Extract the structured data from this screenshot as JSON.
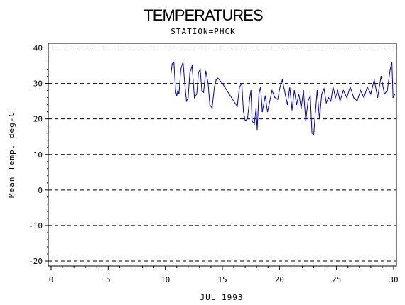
{
  "chart_data": {
    "type": "line",
    "title": "TEMPERATURES",
    "subtitle": "STATION=PHCK",
    "xlabel": "JUL 1993",
    "ylabel": "Mean Temp. deg-C",
    "xlim": [
      0,
      30
    ],
    "ylim": [
      -20,
      40
    ],
    "x_ticks": [
      0,
      5,
      10,
      15,
      20,
      25,
      30
    ],
    "y_ticks": [
      -20,
      -10,
      0,
      10,
      20,
      30,
      40
    ],
    "grid": "horizontal dashed",
    "colors": {
      "series": "#0000cc",
      "axes": "#000000"
    },
    "series": [
      {
        "x": [
          10.5,
          10.6,
          10.75,
          10.9,
          11.0,
          11.1,
          11.2,
          11.35,
          11.55,
          11.7,
          11.85,
          12.0,
          12.15,
          12.35,
          12.55,
          12.75,
          12.9,
          13.05,
          13.2,
          13.35,
          13.55,
          13.75,
          13.9,
          14.1,
          14.3,
          14.45,
          14.6,
          15.0,
          15.6,
          16.3,
          16.5,
          16.7,
          16.85,
          17.0,
          17.2,
          17.4,
          17.5,
          17.6,
          17.8,
          17.95,
          18.05,
          18.2,
          18.35,
          18.5,
          18.75,
          18.95,
          19.15,
          19.35,
          19.6,
          19.85,
          20.05,
          20.25,
          20.5,
          20.7,
          20.9,
          21.1,
          21.3,
          21.5,
          21.7,
          21.9,
          22.1,
          22.3,
          22.5,
          22.7,
          22.85,
          23.0,
          23.15,
          23.3,
          23.5,
          23.7,
          23.9,
          24.1,
          24.3,
          24.5,
          24.7,
          24.9,
          25.1,
          25.3,
          25.6,
          25.9,
          26.2,
          26.5,
          26.8,
          27.1,
          27.4,
          27.7,
          28.0,
          28.3,
          28.6,
          28.9,
          29.2,
          29.45,
          29.7,
          29.85,
          29.95,
          30.1
        ],
        "y": [
          33,
          35.5,
          36,
          28,
          26.5,
          28,
          27,
          34,
          36,
          30,
          25,
          26,
          33,
          35,
          26,
          27,
          33,
          34,
          28,
          27.5,
          33.5,
          30,
          24,
          23,
          29,
          31,
          31.5,
          30,
          27,
          23.5,
          29,
          30,
          22,
          19.5,
          20,
          26,
          28,
          19.5,
          18.5,
          23,
          17,
          27,
          29,
          22,
          26.5,
          22,
          25,
          28,
          26,
          25.5,
          29,
          31,
          27,
          24,
          29,
          22.5,
          28,
          24,
          27,
          23,
          28,
          19.5,
          25,
          26.5,
          16,
          15.5,
          22,
          28,
          20,
          27,
          28.5,
          24.5,
          26,
          25,
          29,
          26,
          28,
          25,
          28,
          26,
          29,
          26,
          25,
          28,
          26,
          29,
          27,
          31,
          26,
          32,
          27,
          28,
          34,
          36,
          26,
          27
        ]
      }
    ]
  }
}
